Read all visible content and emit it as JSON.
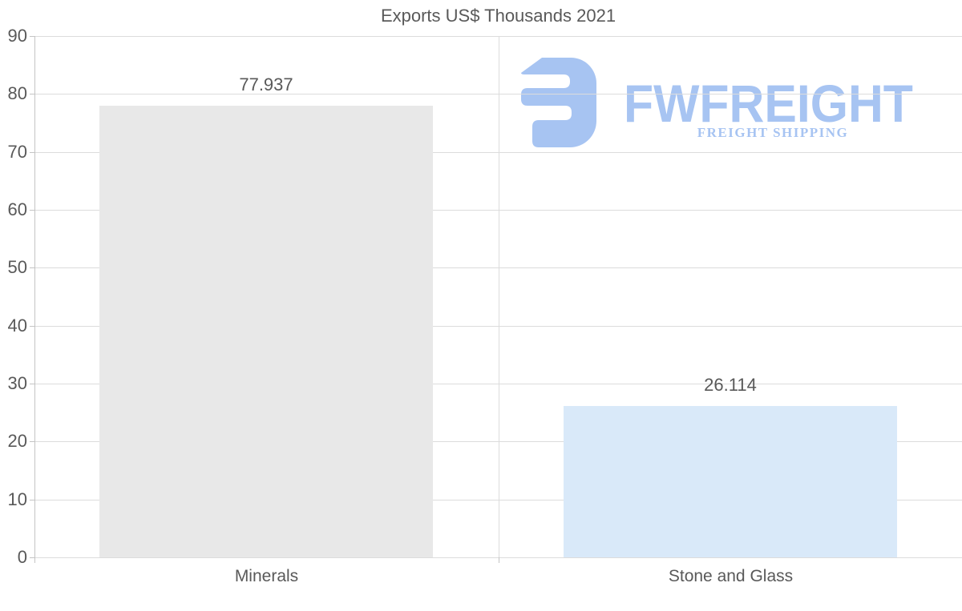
{
  "chart_data": {
    "type": "bar",
    "title": "Exports US$ Thousands 2021",
    "categories": [
      "Minerals",
      "Stone and Glass"
    ],
    "values": [
      77.937,
      26.114
    ],
    "value_labels": [
      "77.937",
      "26.114"
    ],
    "bar_colors": [
      "#e8e8e8",
      "#d9e9f9"
    ],
    "ylim": [
      0,
      90
    ],
    "ytick_step": 10,
    "ytick_labels": [
      "0",
      "10",
      "20",
      "30",
      "40",
      "50",
      "60",
      "70",
      "80",
      "90"
    ],
    "xlabel": "",
    "ylabel": "",
    "grid": true,
    "legend_position": "none"
  },
  "logo": {
    "name": "FWFREIGHT",
    "tagline": "FREIGHT SHIPPING",
    "mark_icon": "stylized-f-rounded-square",
    "color": "#a7c4f2"
  },
  "colors": {
    "text": "#595959",
    "gridline": "#dcdcdc",
    "axis": "#c4c4c4",
    "bar_minerals": "#e8e8e8",
    "bar_stone_and_glass": "#d9e9f9",
    "background": "#ffffff"
  }
}
